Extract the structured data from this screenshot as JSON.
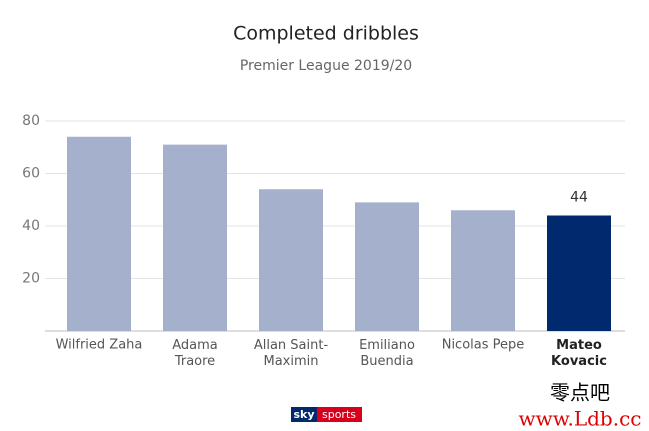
{
  "chart_data": {
    "type": "bar",
    "title": "Completed dribbles",
    "subtitle": "Premier League 2019/20",
    "categories": [
      "Wilfried Zaha",
      "Adama\nTraore",
      "Allan Saint-\nMaximin",
      "Emiliano\nBuendia",
      "Nicolas Pepe",
      "Mateo\nKovacic"
    ],
    "values": [
      74,
      71,
      54,
      49,
      46,
      44
    ],
    "colors": [
      "#a5b1cc",
      "#a5b1cc",
      "#a5b1cc",
      "#a5b1cc",
      "#a5b1cc",
      "#00296e"
    ],
    "labeled": [
      false,
      false,
      false,
      false,
      false,
      true
    ],
    "ylim": [
      0,
      80
    ],
    "yticks": [
      20,
      40,
      60,
      80
    ],
    "grid": true
  },
  "logo": {
    "left": "sky",
    "right": "sports"
  },
  "watermark": {
    "name": "零点吧",
    "url": "www.Ldb.cc"
  }
}
